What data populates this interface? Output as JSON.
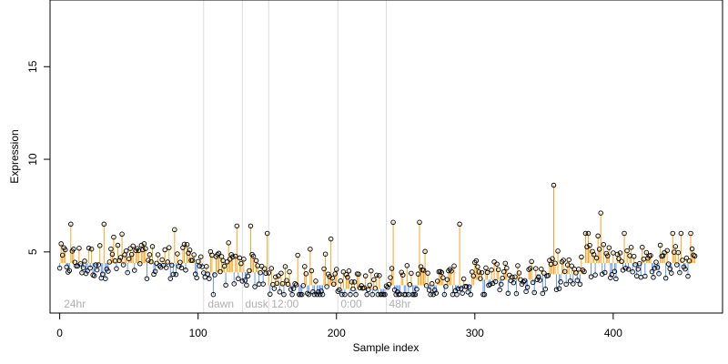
{
  "chart_data": {
    "type": "scatter",
    "title": "",
    "xlabel": "Sample index",
    "ylabel": "Expression",
    "xlim": [
      -7,
      479
    ],
    "ylim": [
      1.7,
      18.6
    ],
    "x_ticks": [
      0,
      100,
      200,
      300,
      400
    ],
    "y_ticks": [
      5,
      10,
      15
    ],
    "grid": false,
    "colors": {
      "above_baseline": "#f5a623",
      "below_baseline": "#6495ed",
      "points": "#000000",
      "separators": "#dddddd",
      "segment_labels": "#b0b0b0"
    },
    "segment_separators": [
      104,
      132,
      151,
      201,
      236
    ],
    "segment_labels": [
      {
        "x": 3,
        "label": "24hr"
      },
      {
        "x": 107,
        "label": "dawn"
      },
      {
        "x": 134,
        "label": "dusk"
      },
      {
        "x": 153,
        "label": "12:00"
      },
      {
        "x": 203,
        "label": "0:00"
      },
      {
        "x": 238,
        "label": "48hr"
      }
    ],
    "baseline": [
      [
        0,
        4.4
      ],
      [
        104,
        4.4
      ],
      [
        104,
        3.9
      ],
      [
        151,
        3.9
      ],
      [
        151,
        3.2
      ],
      [
        201,
        3.2
      ],
      [
        201,
        3.0
      ],
      [
        236,
        3.0
      ],
      [
        236,
        3.2
      ],
      [
        300,
        3.2
      ],
      [
        300,
        3.5
      ],
      [
        345,
        3.5
      ],
      [
        345,
        3.8
      ],
      [
        380,
        3.8
      ],
      [
        380,
        4.4
      ],
      [
        460,
        4.4
      ]
    ],
    "highlight_points": [
      {
        "x": 8,
        "y": 6.5
      },
      {
        "x": 32,
        "y": 6.5
      },
      {
        "x": 83,
        "y": 6.2
      },
      {
        "x": 128,
        "y": 6.4
      },
      {
        "x": 138,
        "y": 6.4
      },
      {
        "x": 196,
        "y": 5.7
      },
      {
        "x": 241,
        "y": 6.6
      },
      {
        "x": 260,
        "y": 6.6
      },
      {
        "x": 289,
        "y": 6.5
      },
      {
        "x": 357,
        "y": 8.6
      },
      {
        "x": 391,
        "y": 7.1
      },
      {
        "x": 449,
        "y": 6.0
      }
    ],
    "n_points": 460,
    "value_range_note": "Most points lie between 2.7 and 6.7"
  }
}
